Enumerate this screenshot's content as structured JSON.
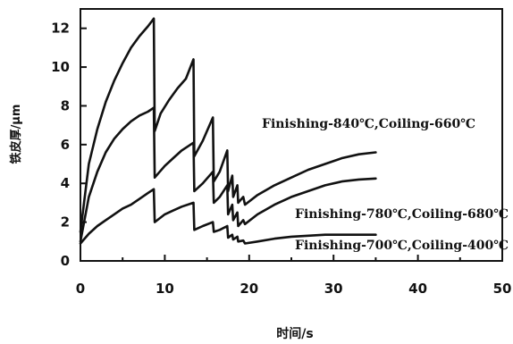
{
  "chart_data": {
    "type": "line",
    "xlabel": "时间/s",
    "ylabel": "铁皮厚/μm",
    "xlim": [
      0,
      50
    ],
    "ylim": [
      0,
      13
    ],
    "xticks": [
      0,
      10,
      20,
      30,
      40,
      50
    ],
    "yticks": [
      0,
      2,
      4,
      6,
      8,
      10,
      12
    ],
    "grid": false,
    "series": [
      {
        "name": "Finishing-840℃,Coiling-660℃",
        "points": [
          [
            0,
            1.5
          ],
          [
            1,
            5.0
          ],
          [
            2,
            6.8
          ],
          [
            3,
            8.2
          ],
          [
            4,
            9.3
          ],
          [
            5,
            10.2
          ],
          [
            6,
            11.0
          ],
          [
            7,
            11.6
          ],
          [
            8,
            12.1
          ],
          [
            8.7,
            12.5
          ],
          [
            8.8,
            6.7
          ],
          [
            9.5,
            7.6
          ],
          [
            10.5,
            8.3
          ],
          [
            11.5,
            8.9
          ],
          [
            12.5,
            9.4
          ],
          [
            13.4,
            10.4
          ],
          [
            13.5,
            5.4
          ],
          [
            14.5,
            6.2
          ],
          [
            15.7,
            7.4
          ],
          [
            15.8,
            4.1
          ],
          [
            16.5,
            4.6
          ],
          [
            17.4,
            5.7
          ],
          [
            17.5,
            3.6
          ],
          [
            18,
            4.4
          ],
          [
            18.1,
            3.3
          ],
          [
            18.6,
            3.9
          ],
          [
            18.7,
            3.0
          ],
          [
            19.3,
            3.3
          ],
          [
            19.5,
            2.9
          ],
          [
            21,
            3.4
          ],
          [
            23,
            3.9
          ],
          [
            25,
            4.3
          ],
          [
            27,
            4.7
          ],
          [
            29,
            5.0
          ],
          [
            31,
            5.3
          ],
          [
            33,
            5.5
          ],
          [
            35,
            5.6
          ]
        ],
        "label": "Finishing-840℃,Coiling-660℃"
      },
      {
        "name": "Finishing-780℃,Coiling-680℃",
        "points": [
          [
            0,
            1.0
          ],
          [
            1,
            3.3
          ],
          [
            2,
            4.6
          ],
          [
            3,
            5.6
          ],
          [
            4,
            6.3
          ],
          [
            5,
            6.8
          ],
          [
            6,
            7.2
          ],
          [
            7,
            7.5
          ],
          [
            8,
            7.7
          ],
          [
            8.7,
            7.9
          ],
          [
            8.8,
            4.3
          ],
          [
            10,
            4.9
          ],
          [
            11,
            5.3
          ],
          [
            12,
            5.7
          ],
          [
            13.4,
            6.1
          ],
          [
            13.5,
            3.6
          ],
          [
            14.5,
            4.0
          ],
          [
            15.7,
            4.6
          ],
          [
            15.8,
            3.0
          ],
          [
            16.5,
            3.3
          ],
          [
            17.4,
            3.9
          ],
          [
            17.5,
            2.4
          ],
          [
            18,
            2.9
          ],
          [
            18.1,
            2.1
          ],
          [
            18.6,
            2.5
          ],
          [
            18.7,
            1.8
          ],
          [
            19.3,
            2.1
          ],
          [
            19.5,
            1.9
          ],
          [
            21,
            2.4
          ],
          [
            23,
            2.9
          ],
          [
            25,
            3.3
          ],
          [
            27,
            3.6
          ],
          [
            29,
            3.9
          ],
          [
            31,
            4.1
          ],
          [
            33,
            4.2
          ],
          [
            35,
            4.25
          ]
        ],
        "label": "Finishing-780℃,Coiling-680℃"
      },
      {
        "name": "Finishing-700℃,Coiling-400℃",
        "points": [
          [
            0,
            0.9
          ],
          [
            1,
            1.4
          ],
          [
            2,
            1.8
          ],
          [
            3,
            2.1
          ],
          [
            4,
            2.4
          ],
          [
            5,
            2.7
          ],
          [
            6,
            2.9
          ],
          [
            7,
            3.2
          ],
          [
            8,
            3.5
          ],
          [
            8.7,
            3.7
          ],
          [
            8.8,
            2.0
          ],
          [
            10,
            2.4
          ],
          [
            11,
            2.6
          ],
          [
            12,
            2.8
          ],
          [
            13.4,
            3.0
          ],
          [
            13.5,
            1.6
          ],
          [
            14.5,
            1.8
          ],
          [
            15.7,
            2.0
          ],
          [
            15.8,
            1.5
          ],
          [
            16.5,
            1.6
          ],
          [
            17.4,
            1.8
          ],
          [
            17.5,
            1.2
          ],
          [
            18,
            1.35
          ],
          [
            18.1,
            1.1
          ],
          [
            18.6,
            1.25
          ],
          [
            18.7,
            1.0
          ],
          [
            19.3,
            1.05
          ],
          [
            19.5,
            0.9
          ],
          [
            21,
            1.0
          ],
          [
            23,
            1.15
          ],
          [
            25,
            1.25
          ],
          [
            27,
            1.3
          ],
          [
            29,
            1.35
          ],
          [
            31,
            1.35
          ],
          [
            33,
            1.35
          ],
          [
            35,
            1.35
          ]
        ],
        "label": "Finishing-700℃,Coiling-400℃"
      }
    ]
  }
}
